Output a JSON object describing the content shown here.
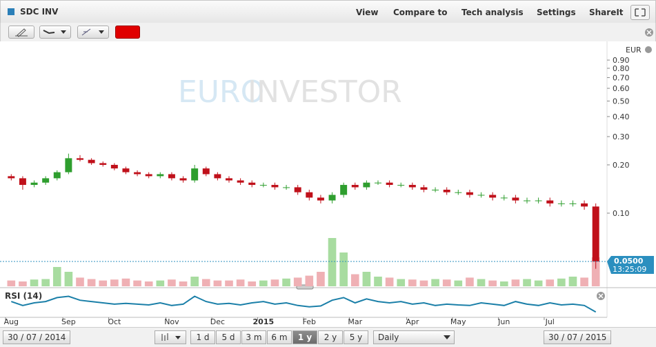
{
  "ui": {
    "title": "SDC INV",
    "menu": [
      "View",
      "Compare to",
      "Tech analysis",
      "Settings",
      "ShareIt"
    ],
    "watermark": [
      "EURO",
      "INVESTOR"
    ],
    "date_from": "30 / 07 / 2014",
    "date_to": "30 / 07 / 2015",
    "periods": [
      "1 d",
      "5 d",
      "3 m",
      "6 m",
      "1 y",
      "2 y",
      "5 y"
    ],
    "active_period": 4,
    "interval": "Daily"
  },
  "chart_data": {
    "type": "candlestick",
    "currency": "EUR",
    "log_scale": true,
    "categories": [
      "Aug",
      null,
      null,
      null,
      null,
      "Sep",
      null,
      null,
      null,
      "Oct",
      null,
      null,
      null,
      null,
      "Nov",
      null,
      null,
      null,
      "Dec",
      null,
      null,
      null,
      "2015",
      null,
      null,
      null,
      "Feb",
      null,
      null,
      null,
      "Mar",
      null,
      null,
      null,
      null,
      "Apr",
      null,
      null,
      null,
      "May",
      null,
      null,
      null,
      "Jun",
      null,
      null,
      null,
      "Jul",
      null,
      null,
      null,
      null
    ],
    "open": [
      0.17,
      0.165,
      0.15,
      0.155,
      0.165,
      0.18,
      0.22,
      0.215,
      0.205,
      0.2,
      0.19,
      0.18,
      0.175,
      0.17,
      0.175,
      0.165,
      0.16,
      0.19,
      0.175,
      0.165,
      0.16,
      0.155,
      0.15,
      0.15,
      0.145,
      0.145,
      0.135,
      0.125,
      0.12,
      0.13,
      0.15,
      0.145,
      0.155,
      0.155,
      0.15,
      0.15,
      0.145,
      0.14,
      0.14,
      0.135,
      0.135,
      0.13,
      0.13,
      0.125,
      0.125,
      0.12,
      0.12,
      0.12,
      0.115,
      0.115,
      0.115,
      0.11
    ],
    "high": [
      0.175,
      0.17,
      0.16,
      0.17,
      0.185,
      0.235,
      0.23,
      0.22,
      0.21,
      0.205,
      0.195,
      0.185,
      0.18,
      0.18,
      0.18,
      0.17,
      0.2,
      0.195,
      0.18,
      0.17,
      0.165,
      0.16,
      0.155,
      0.155,
      0.15,
      0.15,
      0.14,
      0.13,
      0.135,
      0.155,
      0.155,
      0.16,
      0.16,
      0.16,
      0.155,
      0.155,
      0.15,
      0.145,
      0.145,
      0.14,
      0.14,
      0.135,
      0.135,
      0.13,
      0.13,
      0.125,
      0.125,
      0.125,
      0.12,
      0.12,
      0.12,
      0.115
    ],
    "low": [
      0.16,
      0.14,
      0.145,
      0.15,
      0.16,
      0.175,
      0.21,
      0.2,
      0.195,
      0.185,
      0.175,
      0.17,
      0.165,
      0.165,
      0.16,
      0.155,
      0.155,
      0.17,
      0.16,
      0.155,
      0.15,
      0.145,
      0.145,
      0.14,
      0.14,
      0.13,
      0.12,
      0.115,
      0.115,
      0.125,
      0.14,
      0.14,
      0.15,
      0.145,
      0.145,
      0.14,
      0.135,
      0.135,
      0.13,
      0.13,
      0.125,
      0.125,
      0.12,
      0.12,
      0.115,
      0.115,
      0.115,
      0.11,
      0.11,
      0.11,
      0.105,
      0.045
    ],
    "close": [
      0.165,
      0.15,
      0.155,
      0.165,
      0.18,
      0.22,
      0.215,
      0.205,
      0.2,
      0.19,
      0.18,
      0.175,
      0.17,
      0.175,
      0.165,
      0.16,
      0.19,
      0.175,
      0.165,
      0.16,
      0.155,
      0.15,
      0.15,
      0.145,
      0.145,
      0.135,
      0.125,
      0.12,
      0.13,
      0.15,
      0.145,
      0.155,
      0.155,
      0.15,
      0.15,
      0.145,
      0.14,
      0.14,
      0.135,
      0.135,
      0.13,
      0.13,
      0.125,
      0.125,
      0.12,
      0.12,
      0.12,
      0.115,
      0.115,
      0.115,
      0.11,
      0.05
    ],
    "up_color": "#2e9e2e",
    "down_color": "#c0101a",
    "up_volume_color": "#a8dca0",
    "down_volume_color": "#efb0b4",
    "ylim": [
      0.035,
      1.12
    ],
    "yticks": [
      {
        "value": 0.1,
        "label": "0.10"
      },
      {
        "value": 0.2,
        "label": "0.20"
      },
      {
        "value": 0.3,
        "label": "0.30"
      },
      {
        "value": 0.4,
        "label": "0.40"
      },
      {
        "value": 0.5,
        "label": "0.50"
      },
      {
        "value": 0.6,
        "label": "0.60"
      },
      {
        "value": 0.7,
        "label": "0.70"
      },
      {
        "value": 0.8,
        "label": "0.80"
      },
      {
        "value": 0.9,
        "label": "0.90"
      }
    ],
    "last_price": {
      "value": 0.05,
      "label": "0.0500"
    },
    "last_time": "13:25:09",
    "volume": [
      12,
      10,
      14,
      15,
      40,
      30,
      18,
      15,
      12,
      14,
      16,
      12,
      10,
      12,
      14,
      10,
      20,
      15,
      12,
      12,
      14,
      10,
      12,
      14,
      16,
      18,
      22,
      30,
      100,
      70,
      25,
      30,
      20,
      18,
      15,
      14,
      12,
      15,
      14,
      12,
      18,
      15,
      12,
      10,
      14,
      15,
      12,
      14,
      16,
      20,
      18,
      60
    ],
    "volume_lim": [
      0,
      100
    ],
    "rsi_label": "RSI (14)",
    "rsi_color": "#1a7fa8",
    "rsi_lim": [
      0,
      100
    ],
    "rsi": [
      55,
      40,
      50,
      55,
      70,
      75,
      60,
      55,
      50,
      45,
      48,
      45,
      42,
      50,
      40,
      45,
      75,
      55,
      45,
      48,
      42,
      50,
      55,
      45,
      50,
      40,
      35,
      38,
      60,
      70,
      50,
      65,
      55,
      50,
      55,
      45,
      50,
      40,
      45,
      42,
      40,
      50,
      45,
      40,
      55,
      45,
      40,
      50,
      42,
      45,
      40,
      15
    ]
  }
}
